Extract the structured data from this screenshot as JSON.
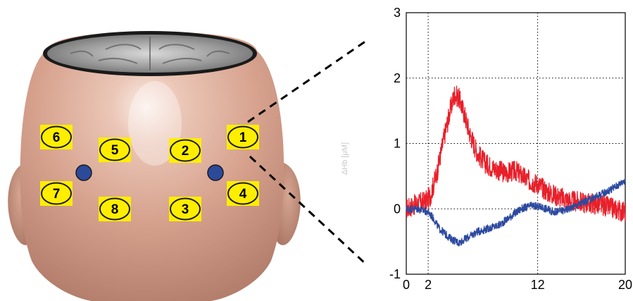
{
  "head_figure": {
    "channels": [
      {
        "label": "1"
      },
      {
        "label": "2"
      },
      {
        "label": "3"
      },
      {
        "label": "4"
      },
      {
        "label": "5"
      },
      {
        "label": "6"
      },
      {
        "label": "7"
      },
      {
        "label": "8"
      }
    ],
    "colors": {
      "channel_fill": "#ffee00",
      "channel_edge": "#1a1a1a",
      "detector": "#2c4a9a",
      "skin": "#d9a895"
    }
  },
  "chart_data": {
    "type": "line",
    "ylabel": "ΔHb [μM]",
    "xlim": [
      0,
      20
    ],
    "ylim": [
      -1,
      3
    ],
    "xticks": [
      0,
      2,
      12,
      20
    ],
    "yticks": [
      -1,
      0,
      1,
      2,
      3
    ],
    "grid": "dotted at ticks",
    "series": [
      {
        "color": "#e8202a",
        "x": [
          0,
          1,
          1.8,
          2.2,
          2.8,
          3.4,
          4.0,
          4.4,
          4.8,
          5.3,
          5.8,
          6.5,
          7.2,
          8.0,
          9.0,
          10.0,
          11.0,
          12.0,
          13.0,
          14.0,
          15.0,
          16.0,
          17.0,
          18.0,
          19.0,
          20.0
        ],
        "y": [
          0.0,
          0.08,
          0.12,
          0.2,
          0.55,
          1.05,
          1.5,
          1.75,
          1.7,
          1.45,
          1.15,
          0.85,
          0.7,
          0.62,
          0.55,
          0.58,
          0.45,
          0.38,
          0.25,
          0.18,
          0.12,
          0.1,
          0.08,
          0.05,
          0.0,
          -0.05
        ]
      },
      {
        "color": "#2c4aa0",
        "x": [
          0,
          1,
          2.0,
          2.5,
          3.0,
          4.0,
          4.8,
          5.5,
          6.5,
          7.5,
          8.5,
          9.5,
          10.5,
          11.5,
          12.5,
          13.5,
          14.5,
          15.5,
          16.5,
          17.5,
          18.5,
          19.5,
          20.0
        ],
        "y": [
          0.0,
          0.0,
          -0.05,
          -0.15,
          -0.3,
          -0.45,
          -0.52,
          -0.45,
          -0.35,
          -0.3,
          -0.25,
          -0.12,
          0.0,
          0.05,
          0.02,
          -0.05,
          -0.02,
          0.05,
          0.12,
          0.2,
          0.28,
          0.38,
          0.45
        ]
      }
    ]
  }
}
